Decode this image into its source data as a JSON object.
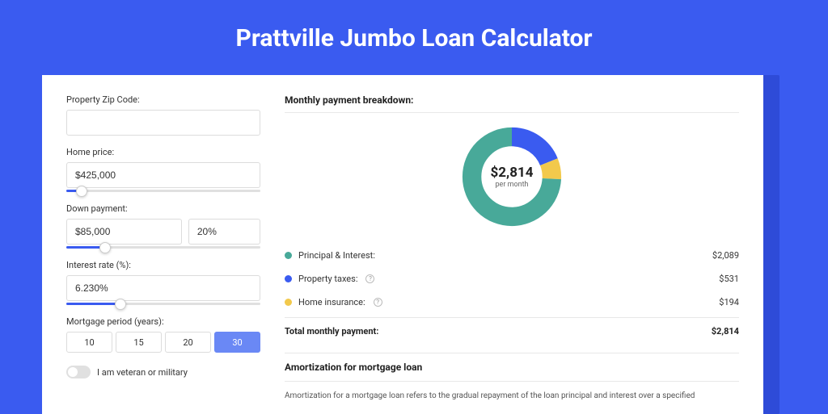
{
  "page": {
    "title": "Prattville Jumbo Loan Calculator",
    "background_color": "#3a5bf0",
    "card_shadow_color": "#2e4bd8",
    "card_bg": "#ffffff"
  },
  "form": {
    "zip": {
      "label": "Property Zip Code:",
      "value": ""
    },
    "home_price": {
      "label": "Home price:",
      "value": "$425,000",
      "slider_pct": 8
    },
    "down_payment": {
      "label": "Down payment:",
      "amount": "$85,000",
      "pct": "20%",
      "slider_pct": 20
    },
    "interest_rate": {
      "label": "Interest rate (%):",
      "value": "6.230%",
      "slider_pct": 28
    },
    "mortgage_period": {
      "label": "Mortgage period (years):",
      "options": [
        "10",
        "15",
        "20",
        "30"
      ],
      "selected": "30"
    },
    "veteran": {
      "label": "I am veteran or military",
      "checked": false
    }
  },
  "breakdown": {
    "section_title": "Monthly payment breakdown:",
    "donut": {
      "center_value": "$2,814",
      "center_sub": "per month",
      "segments": [
        {
          "label": "Principal & Interest:",
          "value": "$2,089",
          "color": "#48a999",
          "pct": 74.2,
          "info": false
        },
        {
          "label": "Property taxes:",
          "value": "$531",
          "color": "#3a5bf0",
          "pct": 18.9,
          "info": true
        },
        {
          "label": "Home insurance:",
          "value": "$194",
          "color": "#f2c94c",
          "pct": 6.9,
          "info": true
        }
      ],
      "stroke_width": 18
    },
    "total": {
      "label": "Total monthly payment:",
      "value": "$2,814"
    }
  },
  "amortization": {
    "title": "Amortization for mortgage loan",
    "text": "Amortization for a mortgage loan refers to the gradual repayment of the loan principal and interest over a specified"
  }
}
